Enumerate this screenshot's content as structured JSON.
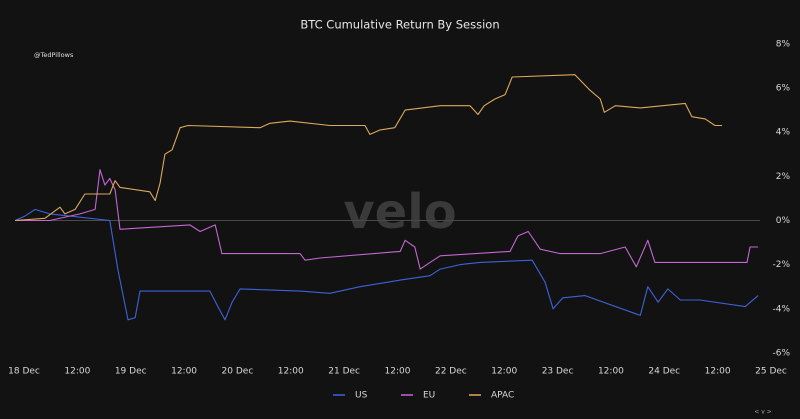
{
  "chart_data": {
    "type": "line",
    "title": "BTC Cumulative Return By Session",
    "watermark": "velo",
    "handle": "@TedPillows",
    "scroll_hint": "< v >",
    "xlim": [
      -2,
      168
    ],
    "ylim": [
      -6.5,
      8.4
    ],
    "xticks": [
      {
        "value": 0,
        "label": "18 Dec"
      },
      {
        "value": 12,
        "label": "12:00"
      },
      {
        "value": 24,
        "label": "19 Dec"
      },
      {
        "value": 36,
        "label": "12:00"
      },
      {
        "value": 48,
        "label": "20 Dec"
      },
      {
        "value": 60,
        "label": "12:00"
      },
      {
        "value": 72,
        "label": "21 Dec"
      },
      {
        "value": 84,
        "label": "12:00"
      },
      {
        "value": 96,
        "label": "22 Dec"
      },
      {
        "value": 108,
        "label": "12:00"
      },
      {
        "value": 120,
        "label": "23 Dec"
      },
      {
        "value": 132,
        "label": "12:00"
      },
      {
        "value": 144,
        "label": "24 Dec"
      },
      {
        "value": 156,
        "label": "12:00"
      },
      {
        "value": 168,
        "label": "25 Dec"
      }
    ],
    "yticks": [
      {
        "value": 8,
        "label": "8%"
      },
      {
        "value": 6,
        "label": "6%"
      },
      {
        "value": 4,
        "label": "4%"
      },
      {
        "value": 2,
        "label": "2%"
      },
      {
        "value": 0,
        "label": "0%"
      },
      {
        "value": -2,
        "label": "-2%"
      },
      {
        "value": -4,
        "label": "-4%"
      },
      {
        "value": -6,
        "label": "-6%"
      }
    ],
    "zero_line": true,
    "series": [
      {
        "name": "US",
        "color": "#3d63d8",
        "x": [
          -2,
          0.2,
          2.5,
          5.8,
          10.3,
          19.3,
          21.1,
          23.4,
          25,
          26.1,
          41.8,
          43.6,
          45.2,
          46.8,
          48.6,
          62.1,
          68.8,
          75.6,
          84.6,
          91.3,
          93.6,
          98.1,
          102.6,
          114.3,
          117.2,
          119,
          121.2,
          126.2,
          138.6,
          140.3,
          142.6,
          144.8,
          147.6,
          152,
          162.2,
          165.1
        ],
        "values": [
          0,
          0.2,
          0.5,
          0.3,
          0.2,
          0,
          -2.2,
          -4.5,
          -4.4,
          -3.2,
          -3.2,
          -3.9,
          -4.5,
          -3.7,
          -3.1,
          -3.2,
          -3.3,
          -3.0,
          -2.7,
          -2.5,
          -2.2,
          -2.0,
          -1.9,
          -1.8,
          -2.8,
          -4.0,
          -3.5,
          -3.4,
          -4.3,
          -3.0,
          -3.7,
          -3.1,
          -3.6,
          -3.6,
          -3.9,
          -3.4
        ]
      },
      {
        "name": "EU",
        "color": "#c466d4",
        "x": [
          -2,
          5.8,
          12.6,
          16,
          17.1,
          18.2,
          19.3,
          20.5,
          21.6,
          37.3,
          39.6,
          43,
          44.5,
          62.1,
          63.2,
          66.6,
          84.6,
          85.7,
          87.9,
          89.1,
          91.3,
          93.6,
          109.3,
          111.1,
          113.4,
          116.1,
          120.6,
          129.6,
          135.2,
          137.7,
          140.3,
          141.9,
          156.5,
          162.6,
          163.3,
          165.1
        ],
        "values": [
          0,
          0,
          0.3,
          0.5,
          2.3,
          1.6,
          1.9,
          1.4,
          -0.4,
          -0.2,
          -0.5,
          -0.2,
          -1.5,
          -1.5,
          -1.8,
          -1.7,
          -1.4,
          -0.9,
          -1.2,
          -2.2,
          -1.9,
          -1.6,
          -1.4,
          -0.7,
          -0.5,
          -1.3,
          -1.5,
          -1.5,
          -1.2,
          -2.1,
          -0.9,
          -1.9,
          -1.9,
          -1.9,
          -1.2,
          -1.2
        ]
      },
      {
        "name": "APAC",
        "color": "#dcaa5c",
        "x": [
          -2,
          4.7,
          8.1,
          9.2,
          11.5,
          13.7,
          19.3,
          20.5,
          21.6,
          28.3,
          29.5,
          30.6,
          31.7,
          33.3,
          35.1,
          36.9,
          53.1,
          55.3,
          59.8,
          68.8,
          76.7,
          77.8,
          80.1,
          83.4,
          85.7,
          93.6,
          100.3,
          102.1,
          103.5,
          105.9,
          108.2,
          109.8,
          123.9,
          127.3,
          129.6,
          130.5,
          133,
          138.6,
          148.7,
          150.2,
          153.2,
          155.4,
          157
        ],
        "values": [
          0,
          0.1,
          0.6,
          0.3,
          0.5,
          1.2,
          1.2,
          1.8,
          1.5,
          1.3,
          0.9,
          1.7,
          3.0,
          3.2,
          4.2,
          4.3,
          4.2,
          4.4,
          4.5,
          4.3,
          4.3,
          3.9,
          4.1,
          4.2,
          5.0,
          5.2,
          5.2,
          4.8,
          5.2,
          5.5,
          5.7,
          6.5,
          6.6,
          5.9,
          5.5,
          4.9,
          5.2,
          5.1,
          5.3,
          4.7,
          4.6,
          4.3,
          4.3
        ]
      }
    ]
  }
}
